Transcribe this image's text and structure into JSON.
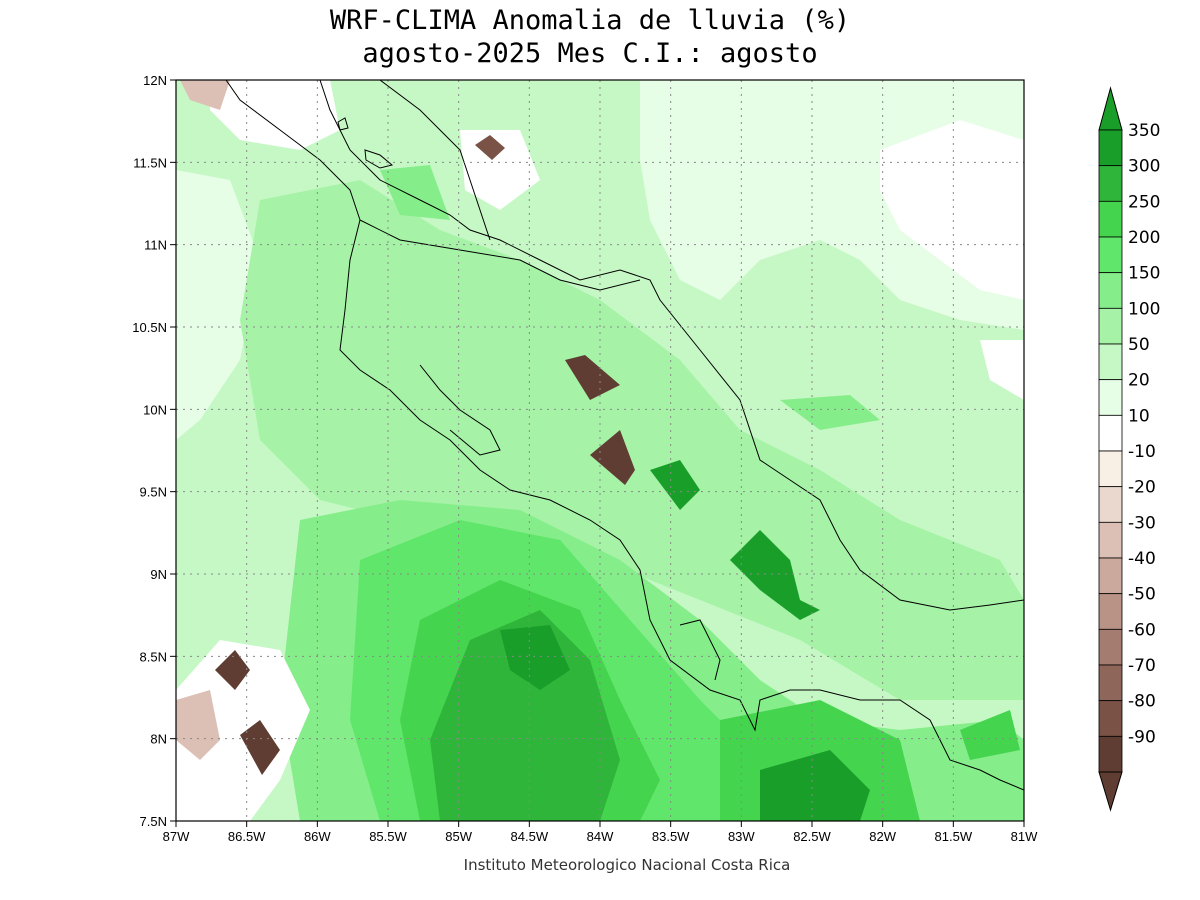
{
  "title": {
    "line1": "WRF-CLIMA Anomalia de lluvia (%)",
    "line2": "agosto-2025 Mes C.I.: agosto"
  },
  "credit": "Instituto Meteorologico Nacional Costa Rica",
  "map": {
    "lon_range": [
      -87,
      -81
    ],
    "lat_range": [
      7.5,
      12
    ],
    "x_ticks": [
      {
        "value": -87,
        "label": "87W"
      },
      {
        "value": -86.5,
        "label": "86.5W"
      },
      {
        "value": -86,
        "label": "86W"
      },
      {
        "value": -85.5,
        "label": "85.5W"
      },
      {
        "value": -85,
        "label": "85W"
      },
      {
        "value": -84.5,
        "label": "84.5W"
      },
      {
        "value": -84,
        "label": "84W"
      },
      {
        "value": -83.5,
        "label": "83.5W"
      },
      {
        "value": -83,
        "label": "83W"
      },
      {
        "value": -82.5,
        "label": "82.5W"
      },
      {
        "value": -82,
        "label": "82W"
      },
      {
        "value": -81.5,
        "label": "81.5W"
      },
      {
        "value": -81,
        "label": "81W"
      }
    ],
    "y_ticks": [
      {
        "value": 12,
        "label": "12N"
      },
      {
        "value": 11.5,
        "label": "11.5N"
      },
      {
        "value": 11,
        "label": "11N"
      },
      {
        "value": 10.5,
        "label": "10.5N"
      },
      {
        "value": 10,
        "label": "10N"
      },
      {
        "value": 9.5,
        "label": "9.5N"
      },
      {
        "value": 9,
        "label": "9N"
      },
      {
        "value": 8.5,
        "label": "8.5N"
      },
      {
        "value": 8,
        "label": "8N"
      },
      {
        "value": 7.5,
        "label": "7.5N"
      }
    ],
    "grid": "dotted",
    "colorbar": {
      "levels": [
        {
          "label": "350",
          "color": "#1a9e2a"
        },
        {
          "label": "300",
          "color": "#2fb53a"
        },
        {
          "label": "250",
          "color": "#44d44e"
        },
        {
          "label": "200",
          "color": "#60e66a"
        },
        {
          "label": "150",
          "color": "#85ee8a"
        },
        {
          "label": "100",
          "color": "#a6f3a7"
        },
        {
          "label": "50",
          "color": "#c6f8c5"
        },
        {
          "label": "20",
          "color": "#e6fde6"
        },
        {
          "label": "10",
          "color": "#ffffff"
        },
        {
          "label": "-10",
          "color": "#f8efe5"
        },
        {
          "label": "-20",
          "color": "#ead8cf"
        },
        {
          "label": "-30",
          "color": "#dcc0b5"
        },
        {
          "label": "-40",
          "color": "#cca99d"
        },
        {
          "label": "-50",
          "color": "#b99386"
        },
        {
          "label": "-60",
          "color": "#a47d70"
        },
        {
          "label": "-70",
          "color": "#8f675a"
        },
        {
          "label": "-80",
          "color": "#7a5346"
        },
        {
          "label": "-90",
          "color": "#5f3d32"
        }
      ]
    }
  }
}
